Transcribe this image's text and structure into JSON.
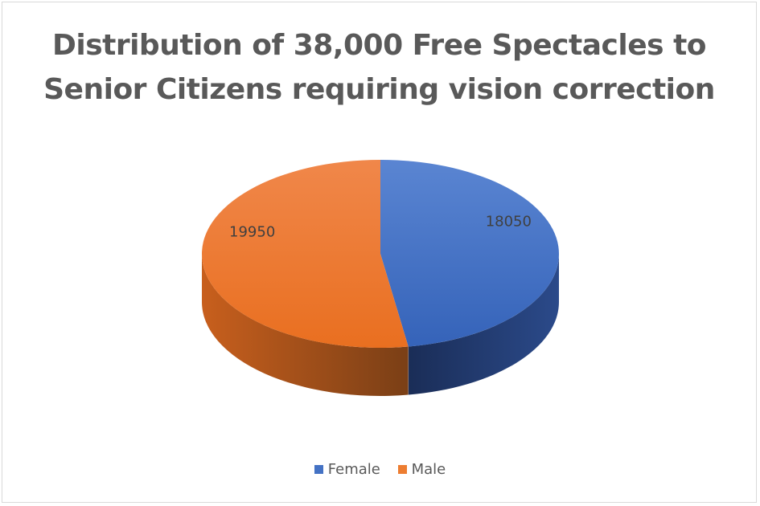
{
  "chart_data": {
    "type": "pie",
    "title_lines": [
      "Distribution of 38,000 Free Spectacles to",
      "Senior Citizens requiring vision correction"
    ],
    "slices": [
      {
        "name": "Female",
        "value": 18050,
        "color": "#4472c4",
        "side_color": "#1f3564"
      },
      {
        "name": "Male",
        "value": 19950,
        "color": "#ed7d31",
        "side_color": "#8e4a1a"
      }
    ],
    "legend_position": "bottom",
    "data_labels": true,
    "style": "3d"
  }
}
